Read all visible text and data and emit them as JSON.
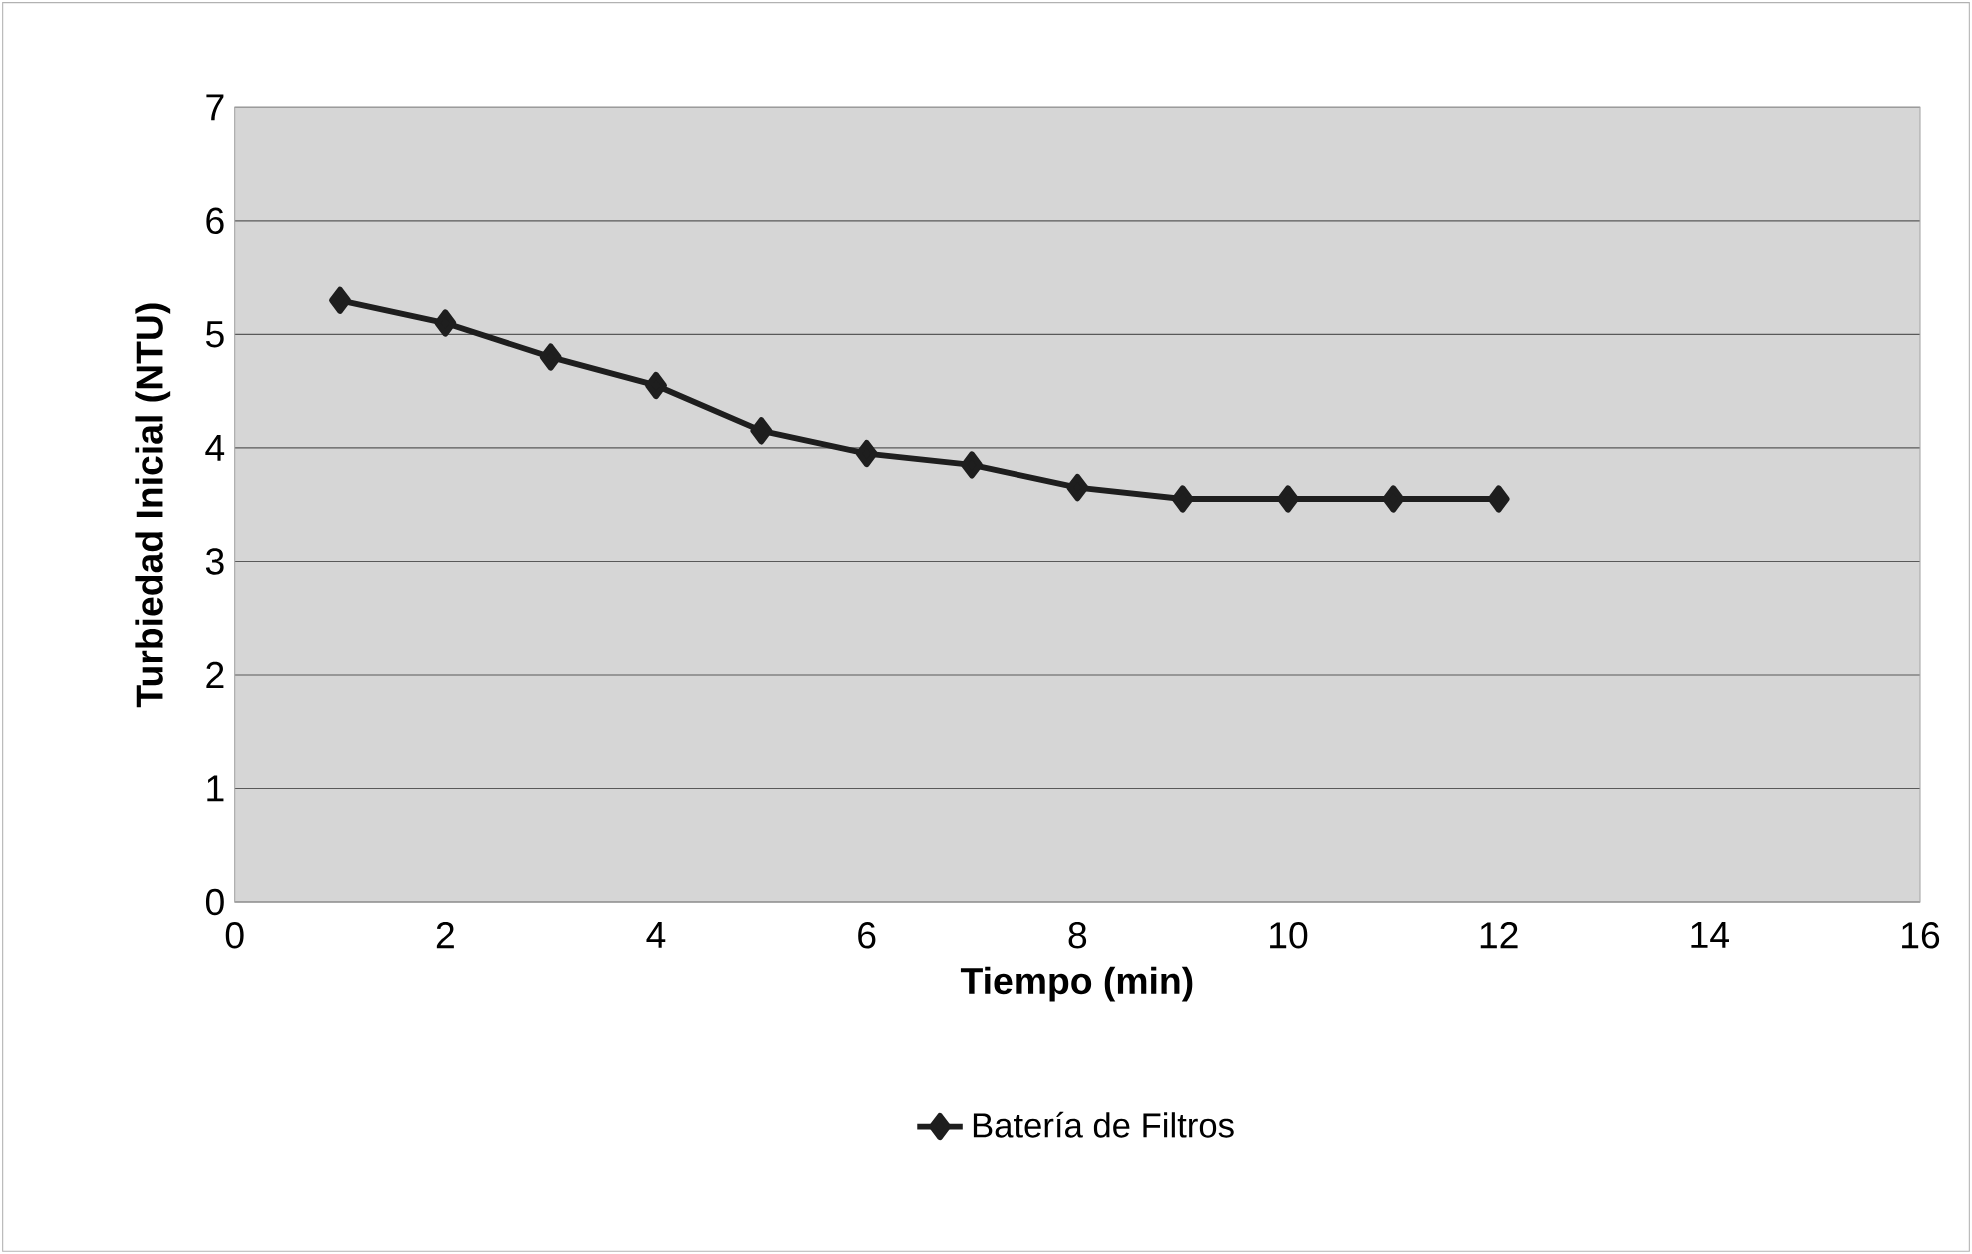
{
  "chart_data": {
    "type": "line",
    "xlabel": "Tiempo (min)",
    "ylabel": "Turbiedad Inicial (NTU)",
    "x": [
      1,
      2,
      3,
      4,
      5,
      6,
      7,
      8,
      9,
      10,
      11,
      12
    ],
    "series": [
      {
        "name": "Batería de Filtros",
        "color": "#1e1e1e",
        "values": [
          5.3,
          5.1,
          4.8,
          4.55,
          4.15,
          3.95,
          3.85,
          3.65,
          3.55,
          3.55,
          3.55,
          3.55
        ]
      }
    ],
    "xlim": [
      0,
      16
    ],
    "xticks": [
      0,
      2,
      4,
      6,
      8,
      10,
      12,
      14,
      16
    ],
    "ylim": [
      0,
      7
    ],
    "yticks": [
      0,
      1,
      2,
      3,
      4,
      5,
      6,
      7
    ],
    "grid": "y",
    "legend": "bottom",
    "marker": "diamond",
    "line_style": "solid"
  }
}
